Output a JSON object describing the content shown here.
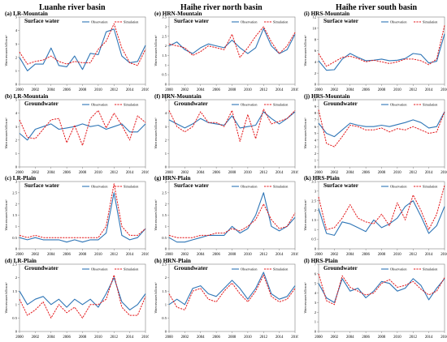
{
  "columns": [
    {
      "title": "Luanhe river basin"
    },
    {
      "title": "Haihe river north basin"
    },
    {
      "title": "Haihe river south basin"
    }
  ],
  "legend": {
    "observation": "Observation",
    "simulation": "Simulation"
  },
  "ylabel": "Water resources billion m³",
  "colors": {
    "observation": "#2e75b6",
    "simulation": "#e3191c"
  },
  "chart_data": [
    {
      "type": "line",
      "col": 0,
      "row": 0,
      "title": "(a) LR-Mountain",
      "subtitle": "Surface water",
      "ylim": [
        0,
        5
      ],
      "yticks": [
        0,
        1,
        2,
        3,
        4,
        5
      ],
      "xticks": [
        2000,
        2002,
        2004,
        2006,
        2008,
        2010,
        2012,
        2014,
        2016
      ],
      "x": [
        2000,
        2001,
        2002,
        2003,
        2004,
        2005,
        2006,
        2007,
        2008,
        2009,
        2010,
        2011,
        2012,
        2013,
        2014,
        2015,
        2016
      ],
      "series": [
        {
          "name": "Observation",
          "values": [
            2.0,
            1.0,
            1.5,
            1.5,
            2.7,
            1.4,
            1.3,
            2.1,
            1.1,
            2.3,
            2.2,
            3.9,
            4.1,
            2.1,
            1.6,
            1.7,
            2.9
          ]
        },
        {
          "name": "Simulation",
          "values": [
            2.4,
            1.5,
            1.7,
            1.8,
            2.1,
            1.7,
            1.5,
            1.7,
            1.6,
            1.6,
            2.6,
            3.2,
            4.5,
            2.7,
            1.6,
            1.4,
            2.6
          ]
        }
      ]
    },
    {
      "type": "line",
      "col": 0,
      "row": 1,
      "title": "(b) LR-Mountain",
      "subtitle": "Groundwater",
      "ylim": [
        0,
        5
      ],
      "yticks": [
        0,
        1,
        2,
        3,
        4,
        5
      ],
      "xticks": [
        2000,
        2002,
        2004,
        2006,
        2008,
        2010,
        2012,
        2014,
        2016
      ],
      "x": [
        2000,
        2001,
        2002,
        2003,
        2004,
        2005,
        2006,
        2007,
        2008,
        2009,
        2010,
        2011,
        2012,
        2013,
        2014,
        2015,
        2016
      ],
      "series": [
        {
          "name": "Observation",
          "values": [
            2.5,
            2.0,
            2.8,
            3.0,
            3.2,
            2.8,
            2.9,
            3.0,
            3.2,
            3.0,
            3.1,
            2.8,
            3.0,
            3.2,
            2.6,
            2.6,
            3.2
          ]
        },
        {
          "name": "Simulation",
          "values": [
            3.5,
            2.2,
            2.1,
            2.8,
            3.5,
            3.6,
            1.8,
            3.1,
            1.6,
            3.6,
            4.2,
            2.9,
            4.0,
            3.1,
            2.0,
            3.8,
            3.3
          ]
        }
      ]
    },
    {
      "type": "line",
      "col": 0,
      "row": 2,
      "title": "(c) LR-Plain",
      "subtitle": "Surface water",
      "ylim": [
        0,
        3
      ],
      "yticks": [
        0,
        0.5,
        1,
        1.5,
        2,
        2.5,
        3
      ],
      "xticks": [
        2000,
        2002,
        2004,
        2006,
        2008,
        2010,
        2012,
        2014,
        2016
      ],
      "x": [
        2000,
        2001,
        2002,
        2003,
        2004,
        2005,
        2006,
        2007,
        2008,
        2009,
        2010,
        2011,
        2012,
        2013,
        2014,
        2015,
        2016
      ],
      "series": [
        {
          "name": "Observation",
          "values": [
            0.5,
            0.4,
            0.5,
            0.4,
            0.4,
            0.4,
            0.3,
            0.4,
            0.3,
            0.4,
            0.4,
            0.7,
            2.5,
            0.6,
            0.4,
            0.5,
            0.9
          ]
        },
        {
          "name": "Simulation",
          "values": [
            0.6,
            0.5,
            0.6,
            0.5,
            0.5,
            0.5,
            0.5,
            0.5,
            0.5,
            0.5,
            0.5,
            1.0,
            2.9,
            1.0,
            0.6,
            0.6,
            0.9
          ]
        }
      ]
    },
    {
      "type": "line",
      "col": 0,
      "row": 3,
      "title": "(d) LR-Plain",
      "subtitle": "Groundwater",
      "ylim": [
        0,
        2.5
      ],
      "yticks": [
        0,
        0.5,
        1,
        1.5,
        2,
        2.5
      ],
      "xticks": [
        2000,
        2002,
        2004,
        2006,
        2008,
        2010,
        2012,
        2014,
        2016
      ],
      "x": [
        2000,
        2001,
        2002,
        2003,
        2004,
        2005,
        2006,
        2007,
        2008,
        2009,
        2010,
        2011,
        2012,
        2013,
        2014,
        2015,
        2016
      ],
      "series": [
        {
          "name": "Observation",
          "values": [
            1.5,
            1.0,
            1.2,
            1.3,
            1.0,
            1.2,
            0.9,
            1.2,
            1.0,
            1.2,
            0.9,
            1.4,
            2.0,
            1.1,
            0.8,
            1.0,
            1.4
          ]
        },
        {
          "name": "Simulation",
          "values": [
            1.2,
            0.6,
            0.8,
            1.1,
            0.5,
            1.0,
            0.7,
            0.9,
            0.5,
            1.0,
            1.0,
            1.2,
            2.1,
            0.9,
            0.6,
            0.6,
            1.3
          ]
        }
      ]
    },
    {
      "type": "line",
      "col": 1,
      "row": 0,
      "title": "(e) HRN-Mountain",
      "subtitle": "Surface water",
      "ylim": [
        0,
        3.5
      ],
      "yticks": [
        0,
        0.5,
        1,
        1.5,
        2,
        2.5,
        3,
        3.5
      ],
      "xticks": [
        2000,
        2002,
        2004,
        2006,
        2008,
        2010,
        2012,
        2014,
        2016
      ],
      "x": [
        2000,
        2001,
        2002,
        2003,
        2004,
        2005,
        2006,
        2007,
        2008,
        2009,
        2010,
        2011,
        2012,
        2013,
        2014,
        2015,
        2016
      ],
      "series": [
        {
          "name": "Observation",
          "values": [
            2.0,
            2.2,
            1.8,
            1.6,
            1.9,
            2.1,
            2.0,
            1.9,
            2.3,
            1.9,
            1.6,
            1.9,
            2.9,
            2.0,
            1.6,
            1.8,
            2.6
          ]
        },
        {
          "name": "Simulation",
          "values": [
            2.1,
            2.0,
            1.9,
            1.5,
            1.7,
            2.0,
            1.9,
            1.8,
            2.6,
            1.4,
            1.9,
            2.5,
            3.0,
            2.2,
            1.6,
            2.0,
            2.7
          ]
        }
      ]
    },
    {
      "type": "line",
      "col": 1,
      "row": 1,
      "title": "(f) HRN-Mountain",
      "subtitle": "Groundwater",
      "ylim": [
        0,
        5
      ],
      "yticks": [
        0,
        1,
        2,
        3,
        4,
        5
      ],
      "xticks": [
        2000,
        2002,
        2004,
        2006,
        2008,
        2010,
        2012,
        2014,
        2016
      ],
      "x": [
        2000,
        2001,
        2002,
        2003,
        2004,
        2005,
        2006,
        2007,
        2008,
        2009,
        2010,
        2011,
        2012,
        2013,
        2014,
        2015,
        2016
      ],
      "series": [
        {
          "name": "Observation",
          "values": [
            3.5,
            3.2,
            2.9,
            3.2,
            3.6,
            3.3,
            3.2,
            3.1,
            3.8,
            2.9,
            3.0,
            3.1,
            4.1,
            3.6,
            3.2,
            3.6,
            4.1
          ]
        },
        {
          "name": "Simulation",
          "values": [
            4.2,
            3.0,
            2.6,
            3.0,
            4.1,
            3.3,
            3.3,
            3.0,
            4.2,
            1.9,
            3.9,
            2.1,
            4.3,
            3.2,
            3.4,
            3.6,
            4.2
          ]
        }
      ]
    },
    {
      "type": "line",
      "col": 1,
      "row": 2,
      "title": "(g) HRN-Plain",
      "subtitle": "Surface water",
      "ylim": [
        0,
        3
      ],
      "yticks": [
        0,
        0.5,
        1,
        1.5,
        2,
        2.5,
        3
      ],
      "xticks": [
        2000,
        2002,
        2004,
        2006,
        2008,
        2010,
        2012,
        2014,
        2016
      ],
      "x": [
        2000,
        2001,
        2002,
        2003,
        2004,
        2005,
        2006,
        2007,
        2008,
        2009,
        2010,
        2011,
        2012,
        2013,
        2014,
        2015,
        2016
      ],
      "series": [
        {
          "name": "Observation",
          "values": [
            0.5,
            0.3,
            0.3,
            0.4,
            0.5,
            0.6,
            0.6,
            0.6,
            1.0,
            0.7,
            0.9,
            1.5,
            2.5,
            1.0,
            0.8,
            1.0,
            1.4
          ]
        },
        {
          "name": "Simulation",
          "values": [
            0.6,
            0.5,
            0.5,
            0.5,
            0.6,
            0.6,
            0.7,
            0.7,
            0.9,
            0.8,
            1.0,
            1.3,
            2.0,
            1.3,
            0.9,
            1.0,
            1.6
          ]
        }
      ]
    },
    {
      "type": "line",
      "col": 1,
      "row": 3,
      "title": "(h) HRN-Plain",
      "subtitle": "Groundwater",
      "ylim": [
        0,
        2.5
      ],
      "yticks": [
        0,
        0.5,
        1,
        1.5,
        2,
        2.5
      ],
      "xticks": [
        2000,
        2002,
        2004,
        2006,
        2008,
        2010,
        2012,
        2014,
        2016
      ],
      "x": [
        2000,
        2001,
        2002,
        2003,
        2004,
        2005,
        2006,
        2007,
        2008,
        2009,
        2010,
        2011,
        2012,
        2013,
        2014,
        2015,
        2016
      ],
      "series": [
        {
          "name": "Observation",
          "values": [
            1.0,
            1.2,
            1.0,
            1.6,
            1.7,
            1.4,
            1.3,
            1.6,
            1.9,
            1.6,
            1.2,
            1.6,
            2.2,
            1.4,
            1.2,
            1.3,
            1.7
          ]
        },
        {
          "name": "Simulation",
          "values": [
            1.4,
            0.9,
            0.8,
            1.5,
            1.6,
            1.2,
            1.1,
            1.5,
            1.8,
            1.4,
            1.1,
            1.5,
            2.1,
            1.3,
            1.1,
            1.2,
            1.6
          ]
        }
      ]
    },
    {
      "type": "line",
      "col": 2,
      "row": 0,
      "title": "(i) HRS-Mountain",
      "subtitle": "Surface water",
      "ylim": [
        0,
        12
      ],
      "yticks": [
        0,
        2,
        4,
        6,
        8,
        10,
        12
      ],
      "xticks": [
        2000,
        2002,
        2004,
        2006,
        2008,
        2010,
        2012,
        2014,
        2016
      ],
      "x": [
        2000,
        2001,
        2002,
        2003,
        2004,
        2005,
        2006,
        2007,
        2008,
        2009,
        2010,
        2011,
        2012,
        2013,
        2014,
        2015,
        2016
      ],
      "series": [
        {
          "name": "Observation",
          "values": [
            4.2,
            2.5,
            2.6,
            4.5,
            5.5,
            4.8,
            4.2,
            4.3,
            4.5,
            4.2,
            4.3,
            4.6,
            5.5,
            5.3,
            3.8,
            4.1,
            9.0
          ]
        },
        {
          "name": "Simulation",
          "values": [
            5.5,
            3.2,
            4.0,
            4.8,
            5.0,
            4.6,
            4.0,
            4.3,
            4.0,
            3.7,
            4.0,
            4.5,
            4.5,
            4.2,
            3.5,
            4.5,
            10.5
          ]
        }
      ]
    },
    {
      "type": "line",
      "col": 2,
      "row": 1,
      "title": "(j) HRS-Mountain",
      "subtitle": "Groundwater",
      "ylim": [
        0,
        10
      ],
      "yticks": [
        0,
        1,
        2,
        3,
        4,
        5,
        6,
        7,
        8,
        9,
        10
      ],
      "xticks": [
        2000,
        2002,
        2004,
        2006,
        2008,
        2010,
        2012,
        2014,
        2016
      ],
      "x": [
        2000,
        2001,
        2002,
        2003,
        2004,
        2005,
        2006,
        2007,
        2008,
        2009,
        2010,
        2011,
        2012,
        2013,
        2014,
        2015,
        2016
      ],
      "series": [
        {
          "name": "Observation",
          "values": [
            6.5,
            5.0,
            4.5,
            5.5,
            6.5,
            6.2,
            6.0,
            6.0,
            6.2,
            6.0,
            6.3,
            6.6,
            7.0,
            6.6,
            5.8,
            6.0,
            8.2
          ]
        },
        {
          "name": "Simulation",
          "values": [
            8.5,
            3.5,
            3.0,
            4.5,
            6.2,
            6.0,
            5.5,
            5.5,
            5.8,
            5.2,
            5.7,
            5.5,
            6.0,
            5.5,
            5.0,
            5.2,
            8.2
          ]
        }
      ]
    },
    {
      "type": "line",
      "col": 2,
      "row": 2,
      "title": "(k) HRS-Plain",
      "subtitle": "Surface water",
      "ylim": [
        0,
        3.5
      ],
      "yticks": [
        0,
        0.5,
        1,
        1.5,
        2,
        2.5,
        3,
        3.5
      ],
      "xticks": [
        2000,
        2002,
        2004,
        2006,
        2008,
        2010,
        2012,
        2014,
        2016
      ],
      "x": [
        2000,
        2001,
        2002,
        2003,
        2004,
        2005,
        2006,
        2007,
        2008,
        2009,
        2010,
        2011,
        2012,
        2013,
        2014,
        2015,
        2016
      ],
      "series": [
        {
          "name": "Observation",
          "values": [
            2.1,
            0.8,
            0.7,
            1.4,
            1.3,
            1.1,
            0.9,
            1.5,
            1.1,
            1.3,
            1.6,
            2.2,
            2.5,
            1.7,
            0.8,
            1.2,
            2.2
          ]
        },
        {
          "name": "Simulation",
          "values": [
            2.7,
            1.0,
            1.1,
            1.6,
            2.3,
            1.6,
            1.4,
            1.3,
            1.8,
            1.2,
            2.4,
            1.5,
            2.8,
            2.0,
            1.0,
            1.8,
            3.3
          ]
        }
      ]
    },
    {
      "type": "line",
      "col": 2,
      "row": 3,
      "title": "(l) HRS-Plain",
      "subtitle": "Groundwater",
      "ylim": [
        0,
        7
      ],
      "yticks": [
        0,
        1,
        2,
        3,
        4,
        5,
        6,
        7
      ],
      "xticks": [
        2000,
        2002,
        2004,
        2006,
        2008,
        2010,
        2012,
        2014,
        2016
      ],
      "x": [
        2000,
        2001,
        2002,
        2003,
        2004,
        2005,
        2006,
        2007,
        2008,
        2009,
        2010,
        2011,
        2012,
        2013,
        2014,
        2015,
        2016
      ],
      "series": [
        {
          "name": "Observation",
          "values": [
            5.0,
            3.5,
            3.0,
            5.5,
            4.2,
            4.5,
            3.5,
            4.2,
            5.2,
            5.0,
            4.2,
            4.5,
            5.5,
            4.8,
            3.3,
            4.5,
            5.5
          ]
        },
        {
          "name": "Simulation",
          "values": [
            6.0,
            3.2,
            2.8,
            5.8,
            4.6,
            4.2,
            3.8,
            4.0,
            5.0,
            5.4,
            4.6,
            4.8,
            5.2,
            4.4,
            3.8,
            4.2,
            5.6
          ]
        }
      ]
    }
  ]
}
